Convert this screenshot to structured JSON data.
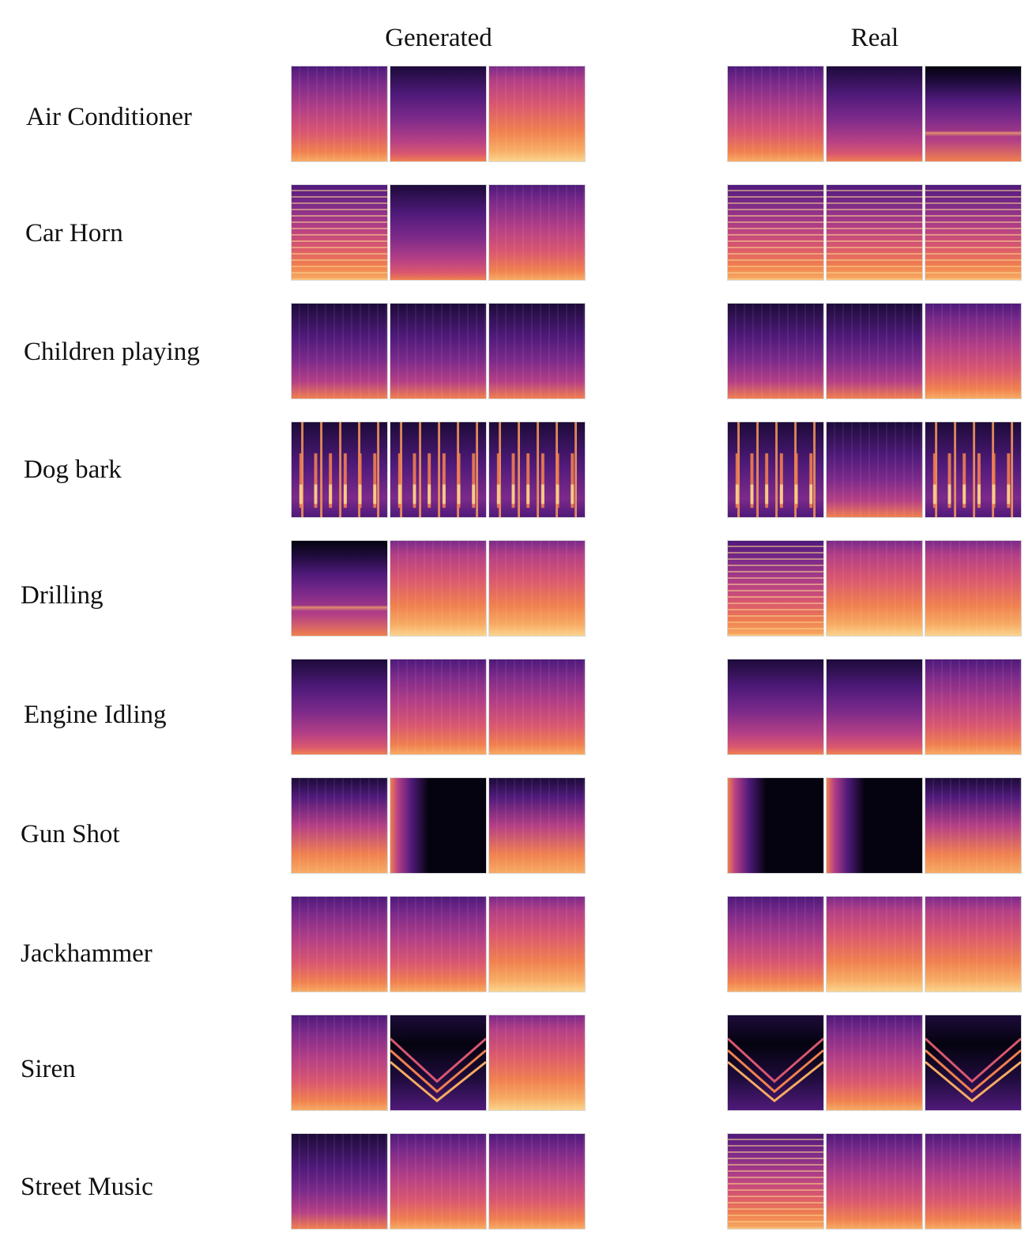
{
  "figure": {
    "columns": [
      {
        "label": "Generated"
      },
      {
        "label": "Real"
      }
    ],
    "rows": [
      {
        "label": "Air Conditioner",
        "generated": [
          "mid",
          "dark",
          "bright"
        ],
        "real": [
          "mid",
          "dark",
          "darkband"
        ]
      },
      {
        "label": "Car Horn",
        "generated": [
          "bandsmid",
          "dark",
          "mid"
        ],
        "real": [
          "bands",
          "bands",
          "bands"
        ]
      },
      {
        "label": "Children playing",
        "generated": [
          "darknoisy",
          "darknoisy",
          "darknoisy"
        ],
        "real": [
          "darknoisy",
          "darknoisy",
          "mid"
        ]
      },
      {
        "label": "Dog bark",
        "generated": [
          "pulse",
          "pulse",
          "pulse"
        ],
        "real": [
          "pulse",
          "darknoisy",
          "pulse"
        ]
      },
      {
        "label": "Drilling",
        "generated": [
          "darkband",
          "bright",
          "bright"
        ],
        "real": [
          "bandsmid",
          "bright",
          "bright"
        ]
      },
      {
        "label": "Engine Idling",
        "generated": [
          "dark",
          "mid",
          "mid"
        ],
        "real": [
          "dark",
          "dark",
          "mid"
        ]
      },
      {
        "label": "Gun Shot",
        "generated": [
          "decay",
          "black",
          "decay"
        ],
        "real": [
          "black",
          "black",
          "decay"
        ]
      },
      {
        "label": "Jackhammer",
        "generated": [
          "mid",
          "mid",
          "bright"
        ],
        "real": [
          "mid",
          "bright",
          "bright"
        ]
      },
      {
        "label": "Siren",
        "generated": [
          "mid",
          "siren",
          "bright"
        ],
        "real": [
          "siren",
          "mid",
          "siren"
        ]
      },
      {
        "label": "Street Music",
        "generated": [
          "darknoisy",
          "mid",
          "mid"
        ],
        "real": [
          "bands",
          "mid",
          "mid"
        ]
      }
    ]
  },
  "palette": {
    "black": "#05030f",
    "deep": "#1d0b3a",
    "purple": "#4f1a7a",
    "violet": "#7c2a8a",
    "magenta": "#b43f86",
    "pink": "#d9576f",
    "orange": "#f0804f",
    "peach": "#f7ab63",
    "yellow": "#fbd38c"
  }
}
